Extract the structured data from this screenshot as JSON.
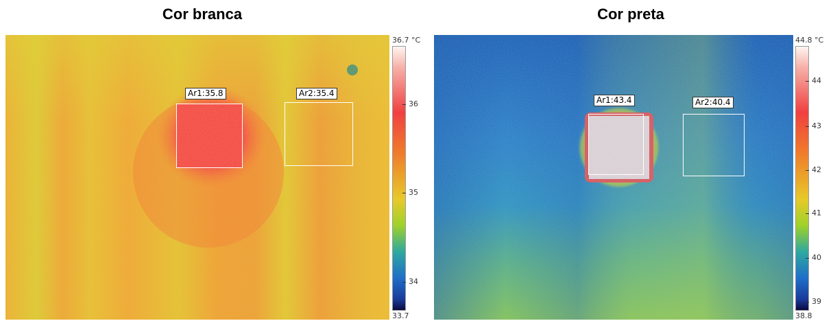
{
  "panels": [
    {
      "title": "Cor branca",
      "scale": {
        "max_label": "36.7 °C",
        "min_label": "33.7",
        "ticks": [
          "36",
          "35",
          "34"
        ]
      },
      "areas": [
        {
          "label": "Ar1:35.8"
        },
        {
          "label": "Ar2:35.4"
        }
      ]
    },
    {
      "title": "Cor preta",
      "scale": {
        "max_label": "44.8 °C",
        "min_label": "38.8",
        "ticks": [
          "44",
          "43",
          "42",
          "41",
          "40",
          "39"
        ]
      },
      "areas": [
        {
          "label": "Ar1:43.4"
        },
        {
          "label": "Ar2:40.4"
        }
      ]
    }
  ],
  "colors": {
    "left_base": "#e6cf2a",
    "left_hot": "#f2403f",
    "right_base": "#2a72c8",
    "right_hot": "#f7d9d6"
  }
}
